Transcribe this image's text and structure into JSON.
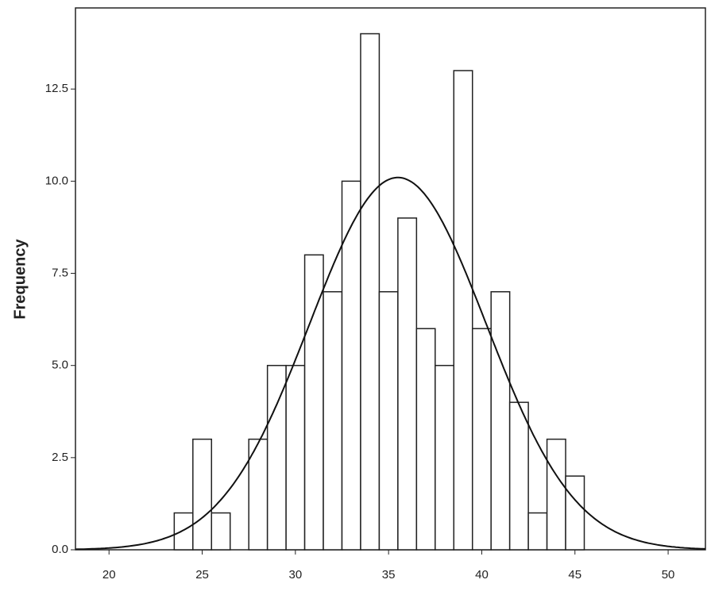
{
  "chart_data": {
    "type": "histogram",
    "y_label": "Frequency",
    "bins": [
      23.5,
      24.5,
      25.5,
      26.5,
      27.5,
      28.5,
      29.5,
      30.5,
      31.5,
      32.5,
      33.5,
      34.5,
      35.5,
      36.5,
      37.5,
      38.5,
      39.5,
      40.5,
      41.5,
      42.5,
      43.5,
      44.5,
      45.5
    ],
    "values": [
      1,
      3,
      1,
      0,
      3,
      5,
      5,
      8,
      7,
      10,
      14,
      7,
      9,
      6,
      5,
      13,
      6,
      7,
      4,
      1,
      3,
      2
    ],
    "color": "#ffffff",
    "normal_curve": {
      "mean": 35.5,
      "std": 4.74
    },
    "xlim": [
      18.2,
      52
    ],
    "xticks": [
      20,
      25,
      30,
      35,
      40,
      45,
      50
    ],
    "ylim": [
      0,
      14.7
    ],
    "yticks": [
      {
        "value": 0,
        "label": "0.0"
      },
      2.5,
      {
        "value": 5,
        "label": "5.0"
      },
      7.5,
      {
        "value": 10,
        "label": "10.0"
      },
      12.5
    ]
  }
}
